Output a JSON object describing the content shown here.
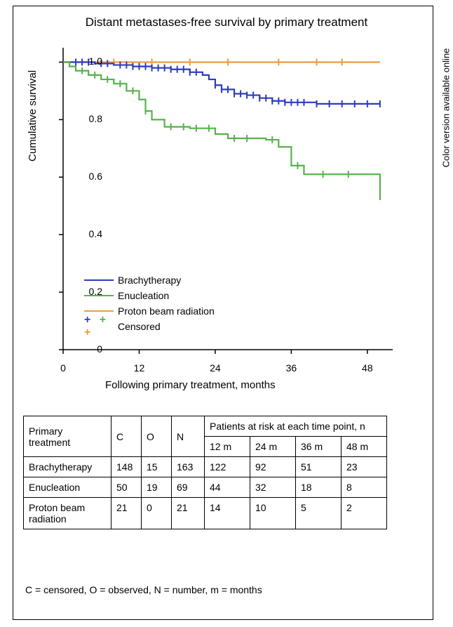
{
  "side_label": "Color version available online",
  "chart": {
    "title": "Distant metastases-free survival by primary treatment",
    "xlabel": "Following primary treatment, months",
    "ylabel": "Cumulative survival",
    "xlim": [
      0,
      52
    ],
    "xtick_step": 12,
    "xticks": [
      0,
      12,
      24,
      36,
      48
    ],
    "ylim": [
      0,
      1.05
    ],
    "ytick_step": 0.2,
    "yticks": [
      0,
      0.2,
      0.4,
      0.6,
      0.8,
      1.0
    ],
    "background_color": "#ffffff",
    "axis_color": "#000000",
    "tick_fontsize": 14,
    "label_fontsize": 15,
    "title_fontsize": 17,
    "line_width": 2.2,
    "series": [
      {
        "name": "Brachytherapy",
        "color": "#2e3bbf",
        "points": [
          [
            0,
            1.0
          ],
          [
            5,
            0.995
          ],
          [
            8,
            0.99
          ],
          [
            11,
            0.985
          ],
          [
            14,
            0.98
          ],
          [
            17,
            0.975
          ],
          [
            20,
            0.965
          ],
          [
            22,
            0.955
          ],
          [
            23,
            0.94
          ],
          [
            24,
            0.92
          ],
          [
            25,
            0.905
          ],
          [
            27,
            0.89
          ],
          [
            29,
            0.885
          ],
          [
            31,
            0.875
          ],
          [
            33,
            0.865
          ],
          [
            35,
            0.86
          ],
          [
            40,
            0.855
          ],
          [
            50,
            0.855
          ]
        ],
        "censor_x": [
          2,
          3,
          4,
          6,
          7,
          9,
          10,
          11,
          12,
          13,
          14,
          15,
          16,
          17,
          18,
          19,
          20,
          21,
          24,
          25,
          26,
          27,
          28,
          29,
          30,
          31,
          32,
          33,
          34,
          35,
          36,
          37,
          38,
          40,
          42,
          44,
          46,
          48,
          50
        ]
      },
      {
        "name": "Enucleation",
        "color": "#56b24b",
        "points": [
          [
            0,
            1.0
          ],
          [
            1,
            0.985
          ],
          [
            2,
            0.97
          ],
          [
            4,
            0.955
          ],
          [
            6,
            0.94
          ],
          [
            8,
            0.925
          ],
          [
            10,
            0.9
          ],
          [
            12,
            0.87
          ],
          [
            13,
            0.83
          ],
          [
            14,
            0.8
          ],
          [
            16,
            0.775
          ],
          [
            20,
            0.77
          ],
          [
            24,
            0.75
          ],
          [
            26,
            0.735
          ],
          [
            32,
            0.73
          ],
          [
            34,
            0.705
          ],
          [
            36,
            0.64
          ],
          [
            38,
            0.61
          ],
          [
            48,
            0.61
          ],
          [
            50,
            0.52
          ]
        ],
        "censor_x": [
          3,
          5,
          7,
          9,
          11,
          13,
          17,
          19,
          21,
          23,
          27,
          29,
          33,
          37,
          41,
          45
        ]
      },
      {
        "name": "Proton beam radiation",
        "color": "#f19a3e",
        "points": [
          [
            0,
            1.0
          ],
          [
            50,
            1.0
          ]
        ],
        "censor_x": [
          4,
          8,
          14,
          20,
          26,
          34,
          40,
          44
        ]
      }
    ],
    "legend": {
      "items": [
        "Brachytherapy",
        "Enucleation",
        "Proton beam radiation"
      ],
      "censored_label": "Censored",
      "censored_colors": [
        "#2e3bbf",
        "#56b24b",
        "#f19a3e"
      ]
    }
  },
  "table": {
    "header_primary": "Primary treatment",
    "header_C": "C",
    "header_O": "O",
    "header_N": "N",
    "header_risk": "Patients at risk at each time point, n",
    "time_cols": [
      "12 m",
      "24 m",
      "36 m",
      "48 m"
    ],
    "rows": [
      {
        "name": "Brachytherapy",
        "C": "148",
        "O": "15",
        "N": "163",
        "risk": [
          "122",
          "92",
          "51",
          "23"
        ]
      },
      {
        "name": "Enucleation",
        "C": "50",
        "O": "19",
        "N": "69",
        "risk": [
          "44",
          "32",
          "18",
          "8"
        ]
      },
      {
        "name": "Proton beam radiation",
        "C": "21",
        "O": "0",
        "N": "21",
        "risk": [
          "14",
          "10",
          "5",
          "2"
        ]
      }
    ]
  },
  "footnote": "C = censored, O = observed, N = number, m = months"
}
